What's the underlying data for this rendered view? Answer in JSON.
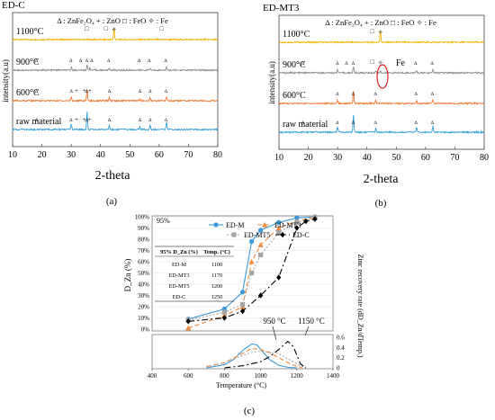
{
  "figure": {
    "panel_labels": [
      "(a)",
      "(b)",
      "(c)"
    ]
  },
  "chart_data": [
    {
      "id": "a",
      "type": "line",
      "title": "ED-C",
      "legend": "Δ : ZnFe₂O₄   + : ZnO   □ : FeO   ✧ : Fe",
      "xlabel": "2-theta",
      "ylabel": "intensity(a.u)",
      "xlim": [
        10,
        80
      ],
      "xticks": [
        10,
        20,
        30,
        40,
        50,
        60,
        70,
        80
      ],
      "series": [
        {
          "name": "1100°C",
          "color": "#f0b400",
          "peaks": [
            [
              44.6,
              1.0
            ]
          ],
          "markers": [
            [
              35.2,
              "□"
            ],
            [
              41.8,
              "□"
            ],
            [
              44.6,
              "✧"
            ],
            [
              60.8,
              "□"
            ]
          ]
        },
        {
          "name": "900°C",
          "color": "#8c8c8c",
          "peaks": [
            [
              30.1,
              0.25
            ],
            [
              35.4,
              0.4
            ],
            [
              36.3,
              0.25
            ],
            [
              43.0,
              0.15
            ],
            [
              56.9,
              0.15
            ],
            [
              62.5,
              0.25
            ]
          ],
          "markers": [
            [
              18.2,
              "Δ"
            ],
            [
              29.9,
              "Δ"
            ],
            [
              33.2,
              "Δ"
            ],
            [
              35.3,
              "Δ"
            ],
            [
              37.0,
              "Δ"
            ],
            [
              42.8,
              "Δ"
            ],
            [
              53.2,
              "Δ"
            ],
            [
              56.6,
              "Δ"
            ],
            [
              62.2,
              "Δ"
            ]
          ]
        },
        {
          "name": "600°C",
          "color": "#f07830",
          "peaks": [
            [
              30.0,
              0.35
            ],
            [
              35.4,
              1.0
            ],
            [
              43.0,
              0.25
            ],
            [
              53.4,
              0.15
            ],
            [
              56.9,
              0.25
            ],
            [
              62.5,
              0.35
            ]
          ],
          "markers": [
            [
              18.2,
              "Δ"
            ],
            [
              30.0,
              "Δ"
            ],
            [
              31.8,
              "+"
            ],
            [
              34.5,
              "+"
            ],
            [
              35.3,
              "Δ"
            ],
            [
              36.4,
              "+"
            ],
            [
              43.0,
              "Δ"
            ],
            [
              53.4,
              "Δ"
            ],
            [
              56.9,
              "Δ"
            ],
            [
              62.3,
              "Δ"
            ]
          ]
        },
        {
          "name": "raw material",
          "color": "#30a0d8",
          "peaks": [
            [
              30.0,
              0.5
            ],
            [
              35.4,
              1.5
            ],
            [
              43.0,
              0.35
            ],
            [
              53.4,
              0.2
            ],
            [
              56.9,
              0.4
            ],
            [
              62.5,
              0.6
            ]
          ],
          "markers": [
            [
              18.2,
              "Δ"
            ],
            [
              29.9,
              "Δ"
            ],
            [
              31.8,
              "+"
            ],
            [
              34.4,
              "+"
            ],
            [
              35.3,
              "Δ"
            ],
            [
              36.3,
              "+"
            ],
            [
              43.0,
              "Δ"
            ],
            [
              53.4,
              "Δ"
            ],
            [
              56.9,
              "Δ"
            ],
            [
              62.3,
              "Δ"
            ]
          ]
        }
      ]
    },
    {
      "id": "b",
      "type": "line",
      "title": "ED-MT3",
      "legend": "Δ : ZnFe₂O₄   + : ZnO   □ : FeO   ✧ : Fe",
      "xlabel": "2-theta",
      "ylabel": "intensity(a.u)",
      "xlim": [
        10,
        80
      ],
      "xticks": [
        10,
        20,
        30,
        40,
        50,
        60,
        70,
        80
      ],
      "annotation": "Fe",
      "series": [
        {
          "name": "1100°C",
          "color": "#f0b400",
          "peaks": [
            [
              44.6,
              1.0
            ]
          ],
          "markers": [
            [
              41.8,
              "□"
            ],
            [
              44.6,
              "✧"
            ]
          ]
        },
        {
          "name": "900°C",
          "color": "#8c8c8c",
          "peaks": [
            [
              30.0,
              0.3
            ],
            [
              35.4,
              0.55
            ],
            [
              43.0,
              0.2
            ],
            [
              44.6,
              0.15
            ],
            [
              56.9,
              0.2
            ],
            [
              62.5,
              0.3
            ]
          ],
          "markers": [
            [
              18.2,
              "Δ"
            ],
            [
              29.9,
              "Δ"
            ],
            [
              33.0,
              "Δ"
            ],
            [
              35.3,
              "Δ"
            ],
            [
              41.8,
              "□"
            ],
            [
              44.6,
              "✧"
            ],
            [
              56.6,
              "Δ"
            ],
            [
              62.2,
              "Δ"
            ]
          ]
        },
        {
          "name": "600°C",
          "color": "#f07830",
          "peaks": [
            [
              30.0,
              0.3
            ],
            [
              35.4,
              1.0
            ],
            [
              43.0,
              0.25
            ],
            [
              56.9,
              0.25
            ],
            [
              62.5,
              0.35
            ]
          ],
          "markers": [
            [
              29.9,
              "Δ"
            ],
            [
              35.3,
              "Δ"
            ],
            [
              42.9,
              "Δ"
            ],
            [
              56.7,
              "Δ"
            ],
            [
              62.3,
              "Δ"
            ]
          ]
        },
        {
          "name": "raw material",
          "color": "#30a0d8",
          "peaks": [
            [
              30.0,
              0.5
            ],
            [
              35.4,
              1.5
            ],
            [
              43.0,
              0.35
            ],
            [
              56.9,
              0.4
            ],
            [
              62.5,
              0.6
            ]
          ],
          "markers": [
            [
              18.2,
              "Δ"
            ],
            [
              29.9,
              "Δ"
            ],
            [
              35.3,
              "Δ"
            ],
            [
              42.9,
              "Δ"
            ],
            [
              56.7,
              "Δ"
            ],
            [
              62.3,
              "Δ"
            ]
          ]
        }
      ]
    },
    {
      "id": "c-top",
      "type": "line",
      "ylabel": "D_Zn (%)",
      "ylim": [
        0,
        100
      ],
      "xlim": [
        400,
        1400
      ],
      "yticks": [
        "0%",
        "10%",
        "20%",
        "30%",
        "40%",
        "50%",
        "60%",
        "70%",
        "80%",
        "90%",
        "100%"
      ],
      "inset_label": "95%",
      "table": {
        "headers": [
          "95% D_Zn (%)",
          "Temp. (°C)"
        ],
        "rows": [
          [
            "ED-M",
            "1100"
          ],
          [
            "ED-MT3",
            "1170"
          ],
          [
            "ED-MT5",
            "1200"
          ],
          [
            "ED-C",
            "1250"
          ]
        ]
      },
      "series": [
        {
          "name": "ED-M",
          "color": "#3a9ad9",
          "marker": "circle",
          "dash": "",
          "x": [
            600,
            800,
            900,
            950,
            1000,
            1100,
            1200,
            1300
          ],
          "y": [
            9,
            18,
            33,
            78,
            88,
            95,
            99,
            100
          ]
        },
        {
          "name": "ED-MT3",
          "color": "#f08a3c",
          "marker": "triangle",
          "dash": "5 3",
          "x": [
            600,
            800,
            900,
            950,
            1000,
            1100,
            1200,
            1300
          ],
          "y": [
            1,
            12,
            20,
            60,
            75,
            90,
            96,
            100
          ]
        },
        {
          "name": "ED-MT5",
          "color": "#a5a5a5",
          "marker": "square",
          "dash": "2 2",
          "x": [
            600,
            800,
            900,
            950,
            1000,
            1100,
            1200,
            1300
          ],
          "y": [
            8,
            15,
            22,
            50,
            66,
            86,
            95,
            99
          ]
        },
        {
          "name": "ED-C",
          "color": "#000000",
          "marker": "diamond",
          "dash": "7 3 2 3",
          "x": [
            600,
            800,
            900,
            1000,
            1100,
            1200,
            1250,
            1300
          ],
          "y": [
            7,
            10,
            16,
            30,
            46,
            90,
            96,
            98
          ]
        }
      ]
    },
    {
      "id": "c-bottom",
      "type": "line",
      "xlabel": "Temperature (°C)",
      "ylabel": "Zinc recovery rate (dD_Zn/dTemp.)",
      "xlim": [
        400,
        1400
      ],
      "ylim": [
        0,
        0.6
      ],
      "xticks": [
        400,
        600,
        800,
        1000,
        1200,
        1400
      ],
      "yticks": [
        "0",
        "0.2",
        "0.4",
        "0.6"
      ],
      "annotations": [
        "950 °C",
        "1150 °C"
      ],
      "series": [
        {
          "name": "ED-M",
          "color": "#3a9ad9",
          "dash": "",
          "x": [
            700,
            800,
            850,
            900,
            950,
            980,
            1000,
            1050,
            1100,
            1150,
            1200
          ],
          "y": [
            0.0,
            0.06,
            0.16,
            0.34,
            0.47,
            0.45,
            0.36,
            0.16,
            0.05,
            0.01,
            0.0
          ]
        },
        {
          "name": "ED-MT3",
          "color": "#f08a3c",
          "dash": "5 3",
          "x": [
            700,
            800,
            900,
            950,
            1000,
            1050,
            1100,
            1150,
            1200,
            1230
          ],
          "y": [
            0.02,
            0.1,
            0.28,
            0.38,
            0.36,
            0.3,
            0.2,
            0.1,
            0.03,
            0.0
          ]
        },
        {
          "name": "ED-MT5",
          "color": "#a5a5a5",
          "dash": "2 2",
          "x": [
            700,
            800,
            900,
            950,
            1000,
            1100,
            1150,
            1200,
            1250
          ],
          "y": [
            0.03,
            0.1,
            0.24,
            0.3,
            0.33,
            0.28,
            0.18,
            0.08,
            0.0
          ]
        },
        {
          "name": "ED-C",
          "color": "#000000",
          "dash": "7 3 2 3",
          "x": [
            800,
            900,
            1000,
            1050,
            1100,
            1150,
            1180,
            1200,
            1220,
            1250
          ],
          "y": [
            0.0,
            0.04,
            0.12,
            0.22,
            0.36,
            0.52,
            0.42,
            0.25,
            0.08,
            0.0
          ]
        }
      ]
    }
  ]
}
